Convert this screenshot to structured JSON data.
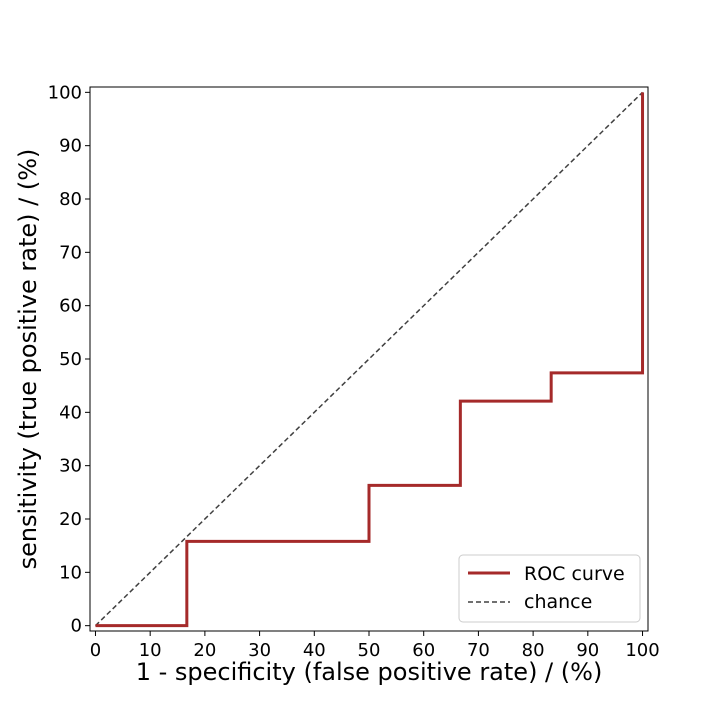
{
  "chart_data": {
    "type": "line",
    "title": "",
    "xlabel": "1 - specificity (false positive rate) / (%)",
    "ylabel": "sensitivity (true positive rate) / (%)",
    "xlim": [
      -1,
      101
    ],
    "ylim": [
      -1,
      101
    ],
    "xticks": [
      0,
      10,
      20,
      30,
      40,
      50,
      60,
      70,
      80,
      90,
      100
    ],
    "yticks": [
      0,
      10,
      20,
      30,
      40,
      50,
      60,
      70,
      80,
      90,
      100
    ],
    "grid": false,
    "legend_position": "lower-right",
    "series": [
      {
        "name": "ROC curve",
        "color": "#a52a2a",
        "style": "solid",
        "x": [
          0,
          16.7,
          16.7,
          50,
          50,
          66.7,
          66.7,
          83.3,
          83.3,
          100,
          100
        ],
        "y": [
          0,
          0,
          15.8,
          15.8,
          26.3,
          26.3,
          42.1,
          42.1,
          47.4,
          47.4,
          100
        ]
      },
      {
        "name": "chance",
        "color": "#404040",
        "style": "dashed",
        "x": [
          0,
          100
        ],
        "y": [
          0,
          100
        ]
      }
    ]
  }
}
